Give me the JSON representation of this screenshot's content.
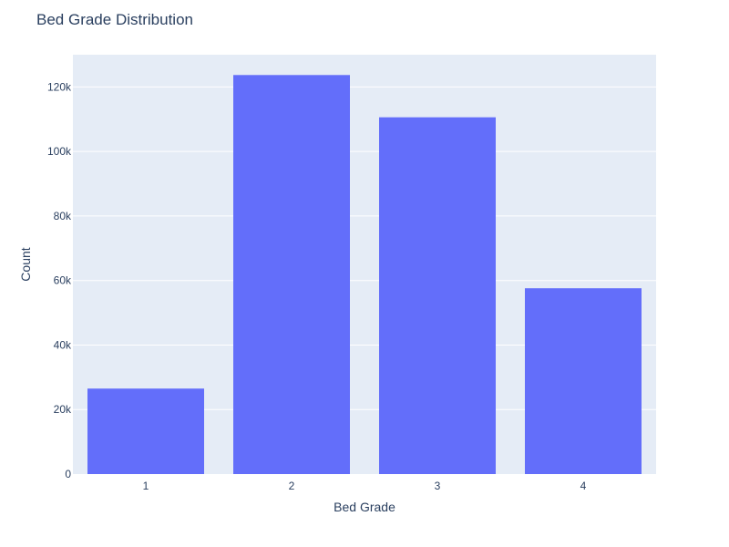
{
  "chart_data": {
    "type": "bar",
    "title": "Bed Grade Distribution",
    "xlabel": "Bed Grade",
    "ylabel": "Count",
    "categories": [
      "1",
      "2",
      "3",
      "4"
    ],
    "values": [
      26500,
      123700,
      110600,
      57600
    ],
    "ylim": [
      0,
      130000
    ],
    "yticks": [
      0,
      20000,
      40000,
      60000,
      80000,
      100000,
      120000
    ],
    "ytick_labels": [
      "0",
      "20k",
      "40k",
      "60k",
      "80k",
      "100k",
      "120k"
    ],
    "grid": true,
    "legend": "none",
    "colors": {
      "bar": "#636efa",
      "plot_background": "#e5ecf6",
      "gridline": "#ffffff",
      "text": "#2a3f5f"
    }
  }
}
